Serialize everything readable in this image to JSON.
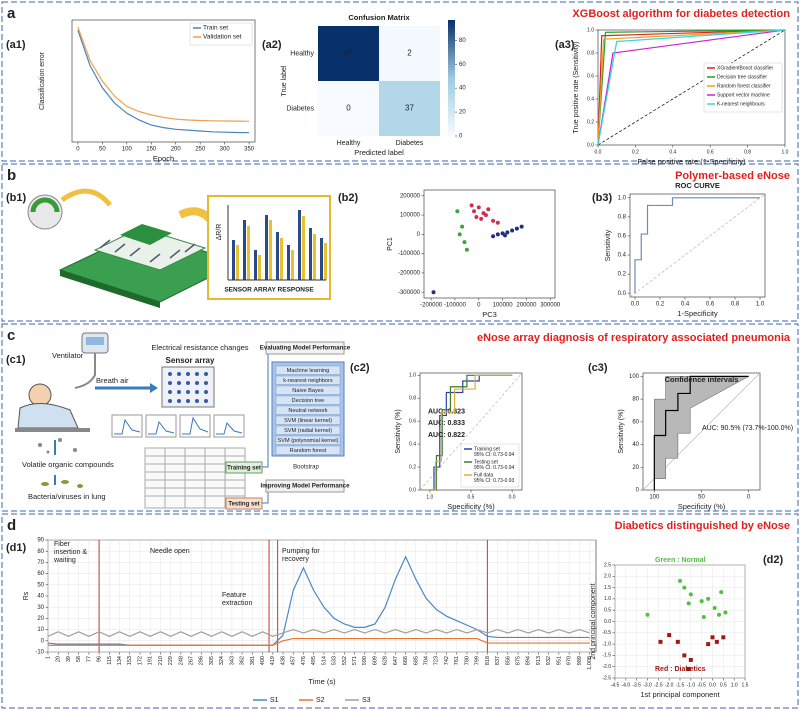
{
  "sections": [
    {
      "label": "a",
      "title": "XGBoost algorithm for diabetes detection"
    },
    {
      "label": "b",
      "title": "Polymer-based eNose"
    },
    {
      "label": "c",
      "title": "eNose array diagnosis of respiratory associated pneumonia"
    },
    {
      "label": "d",
      "title": "Diabetics distinguished by eNose"
    }
  ],
  "b1": {
    "panel": "(b1)",
    "response": "SENSOR ARRAY RESPONSE",
    "axis": "ΔR/R"
  },
  "c1": {
    "panel": "(c1)",
    "ventilator": "Ventilator",
    "breath": "Breath air",
    "resistance": "Electrical resistance changes",
    "array": "Sensor array",
    "voc": "Volatile organic compounds",
    "bacteria": "Bacteria/viruses in lung",
    "evaluating": "Evaluating Model Performance",
    "models": [
      "Machine learning",
      "k-nearest neighbors",
      "Naive Bayes",
      "Decision tree",
      "Neutral network",
      "SVM (linear kernel)",
      "SVM (radial kernel)",
      "SVM (polynomial kernel)",
      "Random forest"
    ],
    "bootstrap": "Bootstrap",
    "improving": "Improving Model Performance",
    "training": "Training set",
    "testing": "Testing set"
  },
  "chart_data": [
    {
      "panel": "(a1)",
      "type": "line",
      "xlabel": "Epoch",
      "ylabel": "Classification error",
      "xlim": [
        -12,
        362
      ],
      "ylim": [
        0,
        0.72
      ],
      "xticks": [
        0,
        50,
        100,
        150,
        200,
        250,
        300,
        350
      ],
      "legend": "upper right",
      "x": [
        0,
        25,
        50,
        75,
        100,
        125,
        150,
        175,
        200,
        225,
        250,
        275,
        300,
        325,
        350
      ],
      "series": [
        {
          "name": "Train set",
          "color": "#4a86b8",
          "values": [
            0.66,
            0.45,
            0.32,
            0.23,
            0.17,
            0.13,
            0.1,
            0.085,
            0.075,
            0.07,
            0.065,
            0.06,
            0.058,
            0.056,
            0.055
          ]
        },
        {
          "name": "Validation set",
          "color": "#eda150",
          "values": [
            0.68,
            0.48,
            0.36,
            0.27,
            0.21,
            0.18,
            0.16,
            0.145,
            0.135,
            0.13,
            0.127,
            0.125,
            0.124,
            0.123,
            0.122
          ]
        }
      ]
    },
    {
      "panel": "(a2)",
      "type": "heatmap",
      "title": "Confusion Matrix",
      "ylabel": "True label",
      "xlabel": "Predicted label",
      "rows": [
        "Healthy",
        "Diabetes"
      ],
      "columns": [
        "Healthy",
        "Diabetes"
      ],
      "values": [
        [
          97,
          2
        ],
        [
          0,
          37
        ]
      ],
      "clim": [
        0,
        97
      ],
      "cticks": [
        0,
        20,
        40,
        60,
        80
      ],
      "colors": [
        "#f7fbff",
        "#9ecae1",
        "#08306b"
      ]
    },
    {
      "panel": "(a3)",
      "type": "line",
      "xlabel": "False positive rate (1-Specificity)",
      "ylabel": "True positive rate (Sensitivity)",
      "xlim": [
        0,
        1
      ],
      "ylim": [
        0,
        1
      ],
      "xticks": [
        {
          "value": 0,
          "label": "0.0"
        },
        0.2,
        0.4,
        0.6,
        0.8,
        {
          "value": 1,
          "label": "1.0"
        }
      ],
      "yticks": [
        {
          "value": 0,
          "label": "0.0"
        },
        0.2,
        0.4,
        0.6,
        0.8,
        {
          "value": 1,
          "label": "1.0"
        }
      ],
      "diagonal": "#000000",
      "legend": "center right",
      "series": [
        {
          "name": "XGradientBoost classifier",
          "color": "#e02020",
          "x": [
            0,
            0.02,
            1
          ],
          "values": [
            0,
            0.95,
            1
          ]
        },
        {
          "name": "Decision tree classifier",
          "color": "#20a020",
          "x": [
            0,
            0.04,
            1
          ],
          "values": [
            0,
            0.98,
            1
          ]
        },
        {
          "name": "Random forest classifier",
          "color": "#f0a020",
          "x": [
            0,
            0.03,
            1
          ],
          "values": [
            0,
            0.92,
            1
          ]
        },
        {
          "name": "Support vector machine",
          "color": "#d020d0",
          "x": [
            0,
            0.08,
            1
          ],
          "values": [
            0,
            0.8,
            1
          ]
        },
        {
          "name": "K-nearest neighbours",
          "color": "#30d8e0",
          "x": [
            0,
            0.1,
            1
          ],
          "values": [
            0,
            0.9,
            1
          ]
        }
      ]
    },
    {
      "panel": "(b2)",
      "type": "scatter",
      "xlabel": "PC3",
      "ylabel": "PC1",
      "xlim": [
        -230000,
        320000
      ],
      "ylim": [
        -330000,
        230000
      ],
      "xticks": [
        -200000,
        -100000,
        0,
        100000,
        200000,
        300000
      ],
      "yticks": [
        -300000,
        -200000,
        -100000,
        0,
        100000,
        200000
      ],
      "series": [
        {
          "color": "#d03050",
          "x": [
            -20000,
            0,
            20000,
            40000,
            -10000,
            10000,
            30000,
            60000,
            80000,
            -30000
          ],
          "values": [
            120000,
            140000,
            110000,
            130000,
            90000,
            80000,
            100000,
            70000,
            60000,
            150000
          ]
        },
        {
          "color": "#203080",
          "x": [
            60000,
            80000,
            100000,
            120000,
            140000,
            160000,
            180000,
            110000,
            -190000
          ],
          "values": [
            -10000,
            0,
            5000,
            10000,
            20000,
            30000,
            40000,
            -5000,
            -300000
          ]
        },
        {
          "color": "#40a040",
          "x": [
            -90000,
            -70000,
            -60000,
            -50000,
            -80000
          ],
          "values": [
            120000,
            40000,
            -40000,
            -80000,
            0
          ]
        }
      ]
    },
    {
      "panel": "(b3)",
      "type": "line",
      "title": "ROC CURVE",
      "xlabel": "1-Specificity",
      "ylabel": "Sensitivity",
      "xlim": [
        -0.04,
        1.04
      ],
      "ylim": [
        -0.04,
        1.04
      ],
      "xticks": [
        {
          "value": 0,
          "label": "0.0"
        },
        0.2,
        0.4,
        0.6,
        0.8,
        {
          "value": 1,
          "label": "1.0"
        }
      ],
      "yticks": [
        {
          "value": 0,
          "label": "0.0"
        },
        0.2,
        0.4,
        0.6,
        0.8,
        {
          "value": 1,
          "label": "1.0"
        }
      ],
      "diagonal": "#e8a0b0",
      "series": [
        {
          "color": "#6a8cc0",
          "x": [
            0,
            0,
            0.05,
            0.05,
            0.1,
            0.1,
            0.3,
            0.3,
            1
          ],
          "values": [
            0,
            0.35,
            0.35,
            0.62,
            0.62,
            0.92,
            0.92,
            1,
            1
          ]
        }
      ]
    },
    {
      "panel": "(c2)",
      "type": "line",
      "xlabel": "Specificity (%)",
      "ylabel": "Sensitivity (%)",
      "xlim": [
        1.12,
        -0.12
      ],
      "ylim": [
        0,
        1.02
      ],
      "xticks": [
        {
          "value": 1,
          "label": "1.0"
        },
        0.5,
        {
          "value": 0,
          "label": "0.0"
        }
      ],
      "yticks": [
        {
          "value": 0,
          "label": "0.0"
        },
        0.2,
        0.4,
        0.6,
        0.8,
        {
          "value": 1,
          "label": "1.0"
        }
      ],
      "diagonal": "#b8b8b8",
      "legend": "lower right",
      "series": [
        {
          "name": "Training set",
          "note": "95% CI: 0.73-0.94",
          "auc": "AUC: 0.823",
          "color": "#3040a8",
          "x": [
            1,
            0.95,
            0.95,
            0.88,
            0.88,
            0.8,
            0.8,
            0.6,
            0.6,
            0.4,
            0.4,
            0
          ],
          "values": [
            0,
            0,
            0.2,
            0.2,
            0.65,
            0.65,
            0.85,
            0.85,
            0.95,
            0.95,
            1,
            1
          ]
        },
        {
          "name": "Testing set",
          "note": "95% CI: 0.73-0.94",
          "auc": "AUC: 0.833",
          "color": "#3a7a3a",
          "x": [
            1,
            0.92,
            0.92,
            0.85,
            0.85,
            0.75,
            0.75,
            0.55,
            0.55,
            0
          ],
          "values": [
            0,
            0,
            0.3,
            0.3,
            0.7,
            0.7,
            0.9,
            0.9,
            1,
            1
          ]
        },
        {
          "name": "Full data",
          "note": "95% CI: 0.73-0.93",
          "auc": "AUC: 0.822",
          "color": "#e0b030",
          "x": [
            1,
            0.93,
            0.93,
            0.86,
            0.86,
            0.7,
            0.7,
            0.45,
            0.45,
            0
          ],
          "values": [
            0,
            0,
            0.25,
            0.25,
            0.68,
            0.68,
            0.88,
            0.88,
            1,
            1
          ]
        }
      ]
    },
    {
      "panel": "(c3)",
      "type": "line",
      "title": "Confidence intervals",
      "xlabel": "Specificity (%)",
      "ylabel": "Sensitivity (%)",
      "annotations": [
        "AUC: 90.5% (73.7%-100.0%)"
      ],
      "xlim": [
        112,
        -12
      ],
      "ylim": [
        0,
        103
      ],
      "xticks": [
        100,
        50,
        0
      ],
      "yticks": [
        0,
        20,
        40,
        60,
        80,
        100
      ],
      "diagonal": "#b8b8b8",
      "bands": [
        {
          "color": "#b8b8b8",
          "x": [
            100,
            100,
            88,
            88,
            75,
            75,
            62,
            62,
            0
          ],
          "upper": [
            0,
            80,
            80,
            100,
            100,
            100,
            100,
            100,
            100
          ],
          "lower": [
            0,
            10,
            10,
            28,
            28,
            50,
            50,
            72,
            100
          ]
        }
      ],
      "series": [
        {
          "color": "#000000",
          "x": [
            100,
            100,
            88,
            88,
            75,
            75,
            62,
            62,
            0
          ],
          "values": [
            0,
            48,
            48,
            70,
            70,
            85,
            85,
            100,
            100
          ]
        }
      ]
    },
    {
      "panel": "(d1)",
      "type": "line",
      "xlabel": "Time (s)",
      "ylabel": "Rs",
      "xlim": [
        1,
        1020
      ],
      "ylim": [
        -10,
        90
      ],
      "grid": true,
      "legend": "bottom",
      "annotations": [
        "Fiber insertion & waiting",
        "Needle open",
        "Feature extraction",
        "Pumping for recovery"
      ],
      "vlines": {
        "color": "#d03030",
        "x": [
          96,
          412,
          428,
          818
        ]
      },
      "yticks": [
        -10,
        0,
        10,
        20,
        30,
        40,
        50,
        60,
        70,
        80,
        90
      ],
      "xticks": [
        1,
        20,
        39,
        58,
        77,
        96,
        115,
        134,
        153,
        172,
        191,
        210,
        229,
        248,
        267,
        286,
        305,
        324,
        343,
        362,
        381,
        400,
        419,
        438,
        457,
        476,
        495,
        514,
        533,
        552,
        571,
        590,
        609,
        628,
        647,
        666,
        685,
        704,
        723,
        742,
        761,
        780,
        799,
        818,
        837,
        856,
        875,
        894,
        913,
        932,
        951,
        970,
        989,
        {
          "value": 1008,
          "label": "1,008"
        }
      ],
      "x": [
        1,
        20,
        39,
        58,
        77,
        96,
        115,
        134,
        153,
        172,
        191,
        210,
        229,
        248,
        267,
        286,
        305,
        324,
        343,
        362,
        381,
        400,
        419,
        438,
        457,
        476,
        495,
        514,
        533,
        552,
        571,
        590,
        609,
        628,
        647,
        666,
        685,
        704,
        723,
        742,
        761,
        780,
        799,
        818,
        837,
        856,
        875,
        894,
        913,
        932,
        951,
        970,
        989,
        1008
      ],
      "series": [
        {
          "name": "S1",
          "color": "#4a86c8",
          "values": [
            -2,
            -3,
            -3,
            -3,
            -3,
            -3,
            -3,
            -3,
            -4,
            -4,
            -4,
            -4,
            -4,
            -4,
            -4,
            -4,
            -4,
            -4,
            -4,
            -4,
            -4,
            -4,
            -4,
            5,
            45,
            65,
            45,
            30,
            20,
            15,
            12,
            12,
            15,
            30,
            55,
            75,
            55,
            38,
            28,
            22,
            18,
            14,
            10,
            4,
            3,
            3,
            3,
            3,
            3,
            3,
            3,
            3,
            3,
            3
          ]
        },
        {
          "name": "S2",
          "color": "#e8762c",
          "values": [
            -4,
            -4,
            -4,
            -4,
            -4,
            -4,
            -4,
            -4,
            -4,
            -4,
            -4,
            -4,
            -4,
            -4,
            -4,
            -4,
            -4,
            -4,
            -4,
            -4,
            -4,
            -4,
            -4,
            0,
            2,
            2,
            2,
            2,
            2,
            2,
            2,
            2,
            2,
            2,
            2,
            2,
            2,
            2,
            2,
            2,
            2,
            2,
            2,
            -2,
            -2,
            -2,
            -2,
            -2,
            -2,
            -2,
            -2,
            -2,
            -2,
            -2
          ]
        },
        {
          "name": "S3",
          "color": "#a0a0a0",
          "values": [
            4,
            8,
            4,
            8,
            4,
            8,
            4,
            8,
            4,
            8,
            4,
            8,
            4,
            8,
            4,
            8,
            4,
            8,
            4,
            8,
            4,
            8,
            4,
            7,
            10,
            7,
            10,
            7,
            10,
            7,
            10,
            7,
            10,
            7,
            10,
            7,
            10,
            7,
            10,
            7,
            10,
            7,
            10,
            7,
            10,
            7,
            10,
            7,
            10,
            7,
            10,
            7,
            10,
            7
          ]
        }
      ]
    },
    {
      "panel": "(d2)",
      "type": "scatter",
      "xlabel": "1st principal component",
      "ylabel": "2nd principal component",
      "xlim": [
        -4.5,
        1.5
      ],
      "ylim": [
        -2.5,
        2.5
      ],
      "grid": true,
      "annotations": [
        "Green : Normal",
        "Red : Diabetics"
      ],
      "xticks": [
        -4.5,
        {
          "value": -4,
          "label": "-4.0"
        },
        -3.5,
        {
          "value": -3,
          "label": "-3.0"
        },
        -2.5,
        {
          "value": -2,
          "label": "-2.0"
        },
        -1.5,
        {
          "value": -1,
          "label": "-1.0"
        },
        -0.5,
        {
          "value": 0,
          "label": "0.0"
        },
        0.5,
        {
          "value": 1,
          "label": "1.0"
        },
        1.5
      ],
      "yticks": [
        -2.5,
        {
          "value": -2,
          "label": "-2.0"
        },
        -1.5,
        {
          "value": -1,
          "label": "-1.0"
        },
        -0.5,
        {
          "value": 0,
          "label": "0.0"
        },
        0.5,
        {
          "value": 1,
          "label": "1.0"
        },
        1.5,
        {
          "value": 2,
          "label": "2.0"
        },
        2.5
      ],
      "series": [
        {
          "color": "#50c040",
          "marker": "circle",
          "x": [
            -1.5,
            -1.3,
            -1.0,
            -0.5,
            -0.2,
            0.1,
            0.3,
            0.6,
            -0.4,
            -1.1,
            -3.0,
            0.4
          ],
          "values": [
            1.8,
            1.5,
            1.2,
            0.9,
            1.0,
            0.6,
            0.3,
            0.4,
            0.2,
            0.8,
            0.3,
            1.3
          ]
        },
        {
          "color": "#a01818",
          "marker": "square",
          "x": [
            -2.0,
            -1.6,
            -1.3,
            -1.1,
            -0.2,
            0,
            0.2,
            0.5,
            -2.4,
            -1.0
          ],
          "values": [
            -0.6,
            -0.9,
            -1.5,
            -2.1,
            -1.0,
            -0.7,
            -0.9,
            -0.7,
            -0.9,
            -1.7
          ]
        }
      ]
    }
  ]
}
